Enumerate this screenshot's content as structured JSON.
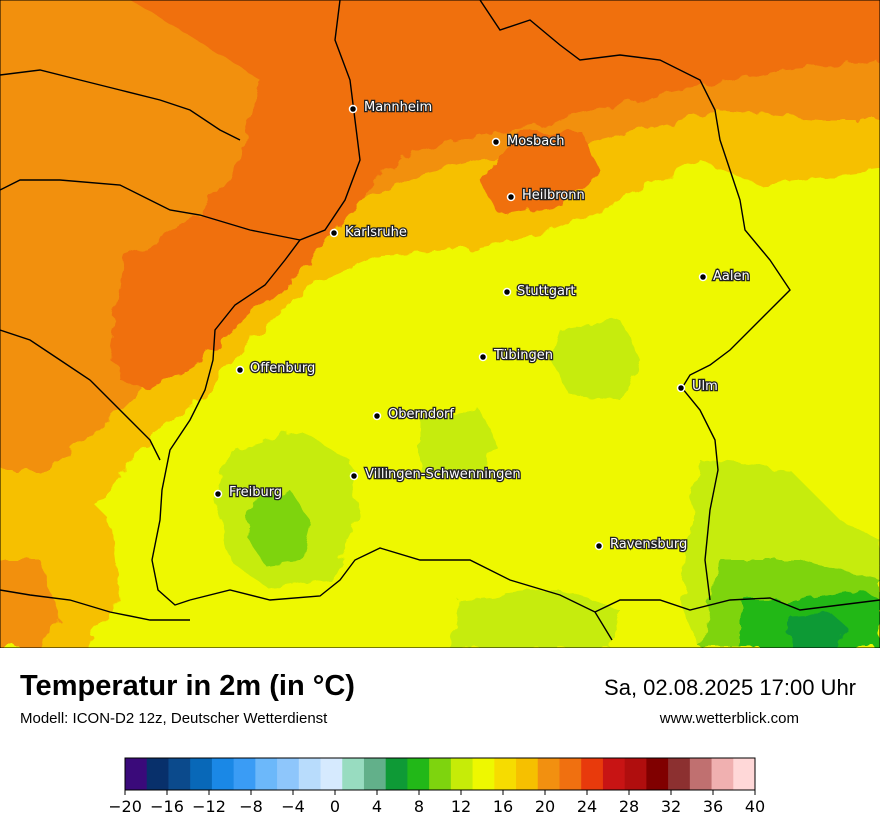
{
  "header": {
    "title": "Temperatur in 2m (in °C)",
    "model": "Modell: ICON-D2 12z, Deutscher Wetterdienst",
    "datetime": "Sa, 02.08.2025 17:00 Uhr",
    "url": "www.wetterblick.com"
  },
  "cities": [
    {
      "name": "Mannheim",
      "id": "mannheim"
    },
    {
      "name": "Mosbach",
      "id": "mosbach"
    },
    {
      "name": "Heilbronn",
      "id": "heilbronn"
    },
    {
      "name": "Karlsruhe",
      "id": "karlsruhe"
    },
    {
      "name": "Stuttgart",
      "id": "stuttgart"
    },
    {
      "name": "Aalen",
      "id": "aalen"
    },
    {
      "name": "Tübingen",
      "id": "tuebingen"
    },
    {
      "name": "Offenburg",
      "id": "offenburg"
    },
    {
      "name": "Ulm",
      "id": "ulm"
    },
    {
      "name": "Oberndorf",
      "id": "oberndorf"
    },
    {
      "name": "Villingen-Schwenningen",
      "id": "villingen"
    },
    {
      "name": "Freiburg",
      "id": "freiburg"
    },
    {
      "name": "Ravensburg",
      "id": "ravensburg"
    }
  ],
  "legend": {
    "unit": "°C",
    "min": -20,
    "max": 40,
    "step": 2,
    "tick_labels": [
      "−20",
      "−16",
      "−12",
      "−8",
      "−4",
      "0",
      "4",
      "8",
      "12",
      "16",
      "20",
      "24",
      "28",
      "32",
      "36",
      "40"
    ],
    "colors": [
      "#3a0a7a",
      "#08306b",
      "#0b4a8c",
      "#0868b8",
      "#1a88e6",
      "#3a9cf5",
      "#6cb8fa",
      "#8ec6fb",
      "#b8dcfc",
      "#d6eafe",
      "#98dcc0",
      "#62b08a",
      "#0e9a36",
      "#22b818",
      "#7ed40e",
      "#c6ec08",
      "#eef800",
      "#f6dc00",
      "#f6c000",
      "#f29010",
      "#f07010",
      "#e83a0c",
      "#c81414",
      "#b00e0e",
      "#800000",
      "#8c3030",
      "#c07070",
      "#f0b0b0",
      "#ffd8d8"
    ]
  }
}
